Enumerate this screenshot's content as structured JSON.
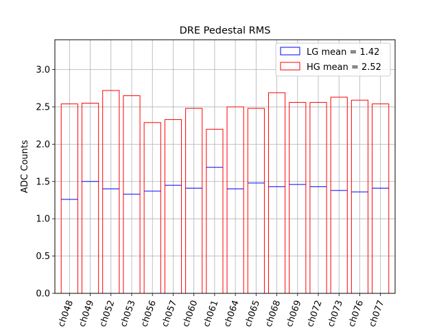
{
  "chart_data": {
    "type": "bar",
    "title": "DRE Pedestal RMS",
    "xlabel": "",
    "ylabel": "ADC Counts",
    "ylim": [
      0,
      3.4
    ],
    "yticks": [
      0.0,
      0.5,
      1.0,
      1.5,
      2.0,
      2.5,
      3.0
    ],
    "ytick_labels": [
      "0.0",
      "0.5",
      "1.0",
      "1.5",
      "2.0",
      "2.5",
      "3.0"
    ],
    "grid": true,
    "legend_position": "top-right",
    "categories": [
      "ch048",
      "ch049",
      "ch052",
      "ch053",
      "ch056",
      "ch057",
      "ch060",
      "ch061",
      "ch064",
      "ch065",
      "ch068",
      "ch069",
      "ch072",
      "ch073",
      "ch076",
      "ch077"
    ],
    "series": [
      {
        "name": "LG",
        "legend_label": "LG mean = 1.42",
        "style": "step",
        "color": "#0000ff",
        "values": [
          1.26,
          1.5,
          1.4,
          1.33,
          1.37,
          1.45,
          1.41,
          1.69,
          1.4,
          1.48,
          1.43,
          1.46,
          1.43,
          1.38,
          1.36,
          1.41
        ]
      },
      {
        "name": "HG",
        "legend_label": "HG mean = 2.52",
        "style": "bar-outline",
        "color": "#ff0000",
        "values": [
          2.54,
          2.55,
          2.72,
          2.65,
          2.29,
          2.33,
          2.48,
          2.2,
          2.5,
          2.48,
          2.69,
          2.56,
          2.56,
          2.63,
          2.59,
          2.54
        ]
      }
    ]
  }
}
